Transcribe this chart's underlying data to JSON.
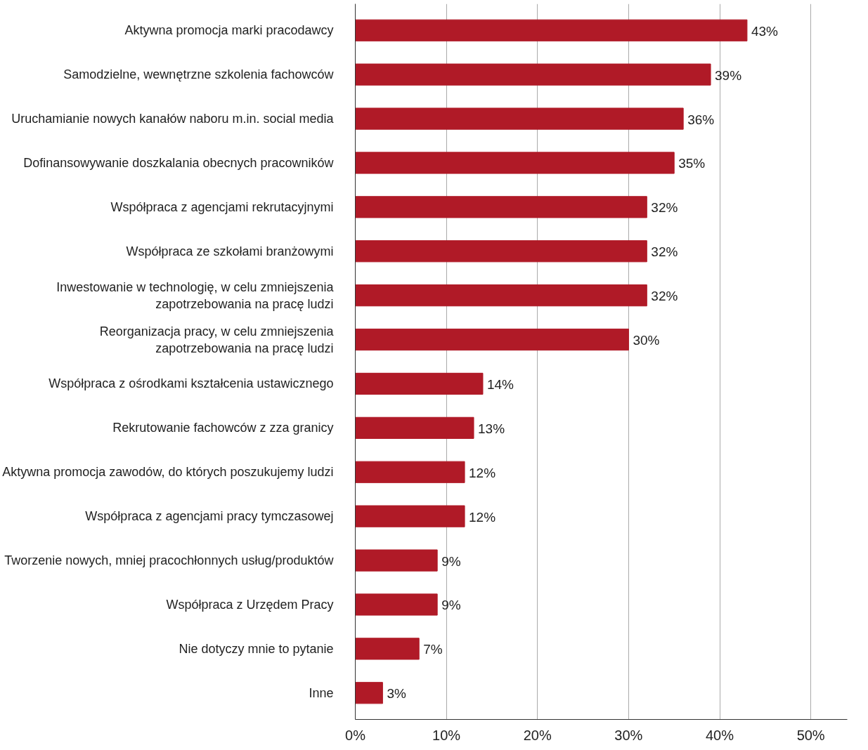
{
  "chart_data": {
    "type": "bar",
    "orientation": "horizontal",
    "categories": [
      "Aktywna promocja marki pracodawcy",
      "Samodzielne, wewnętrzne szkolenia fachowców",
      "Uruchamianie nowych kanałów naboru m.in. social media",
      "Dofinansowywanie doszkalania obecnych pracowników",
      "Współpraca z agencjami rekrutacyjnymi",
      "Współpraca ze szkołami branżowymi",
      "Inwestowanie w technologię, w celu zmniejszenia\nzapotrzebowania na pracę ludzi",
      "Reorganizacja pracy, w celu zmniejszenia\nzapotrzebowania na pracę ludzi",
      "Współpraca z ośrodkami kształcenia ustawicznego",
      "Rekrutowanie fachowców z zza granicy",
      "Aktywna promocja zawodów, do których poszukujemy ludzi",
      "Współpraca z agencjami pracy tymczasowej",
      "Tworzenie nowych, mniej pracochłonnych usług/produktów",
      "Współpraca z Urzędem Pracy",
      "Nie dotyczy mnie to pytanie",
      "Inne"
    ],
    "values": [
      43,
      39,
      36,
      35,
      32,
      32,
      32,
      30,
      14,
      13,
      12,
      12,
      9,
      9,
      7,
      3
    ],
    "color": "#b01a27",
    "value_labels": [
      "43%",
      "39%",
      "36%",
      "35%",
      "32%",
      "32%",
      "32%",
      "30%",
      "14%",
      "13%",
      "12%",
      "12%",
      "9%",
      "9%",
      "7%",
      "3%"
    ],
    "xlim": [
      0,
      54
    ],
    "xticks": [
      {
        "value": 0,
        "label": "0%"
      },
      {
        "value": 10,
        "label": "10%"
      },
      {
        "value": 20,
        "label": "20%"
      },
      {
        "value": 30,
        "label": "30%"
      },
      {
        "value": 40,
        "label": "40%"
      },
      {
        "value": 50,
        "label": "50%"
      }
    ],
    "grid": "x"
  }
}
